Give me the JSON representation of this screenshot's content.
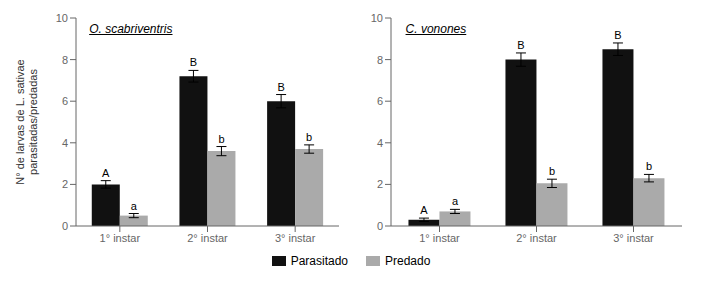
{
  "chart_data": [
    {
      "type": "bar",
      "title": "O. scabriventris",
      "categories": [
        "1° instar",
        "2° instar",
        "3° instar"
      ],
      "ylabel": "N° de larvas de L. sativae\nparasitadas/predadas",
      "ylim": [
        0,
        10
      ],
      "yticks": [
        0,
        2,
        4,
        6,
        8,
        10
      ],
      "grid": false,
      "legend": "bottom",
      "series": [
        {
          "name": "Parasitado",
          "color": "#111111",
          "values": [
            2.0,
            7.2,
            6.0
          ],
          "errors": [
            0.18,
            0.28,
            0.32
          ],
          "letters": [
            "A",
            "B",
            "B"
          ]
        },
        {
          "name": "Predado",
          "color": "#aaaaaa",
          "values": [
            0.5,
            3.6,
            3.7
          ],
          "errors": [
            0.1,
            0.22,
            0.2
          ],
          "letters": [
            "a",
            "b",
            "b"
          ]
        }
      ]
    },
    {
      "type": "bar",
      "title": "C. vonones",
      "categories": [
        "1° instar",
        "2° instar",
        "3° instar"
      ],
      "ylim": [
        0,
        10
      ],
      "yticks": [
        0,
        2,
        4,
        6,
        8,
        10
      ],
      "grid": false,
      "legend": "bottom",
      "series": [
        {
          "name": "Parasitado",
          "color": "#111111",
          "values": [
            0.3,
            8.0,
            8.5
          ],
          "errors": [
            0.08,
            0.32,
            0.3
          ],
          "letters": [
            "A",
            "B",
            "B"
          ]
        },
        {
          "name": "Predado",
          "color": "#aaaaaa",
          "values": [
            0.7,
            2.05,
            2.3
          ],
          "errors": [
            0.1,
            0.2,
            0.18
          ],
          "letters": [
            "a",
            "b",
            "b"
          ]
        }
      ]
    }
  ]
}
